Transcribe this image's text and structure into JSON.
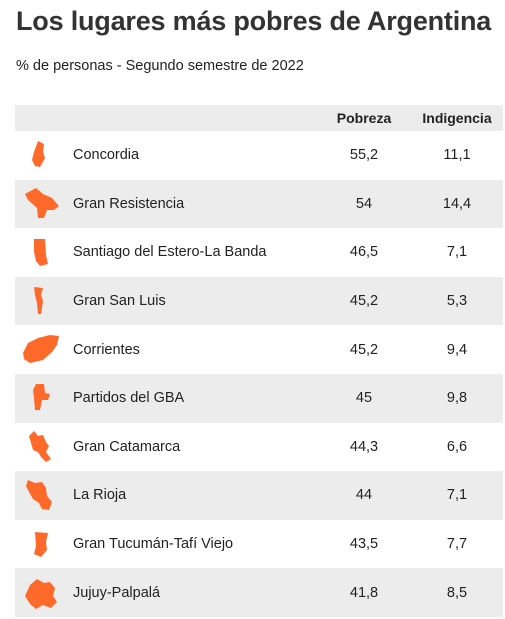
{
  "title": "Los lugares más pobres de Argentina",
  "subtitle": "% de personas - Segundo semestre de 2022",
  "colors": {
    "icon": "#ff6a2b",
    "row_alt": "#ececec"
  },
  "chart_data": {
    "type": "table",
    "columns": [
      "",
      "Pobreza",
      "Indigencia"
    ],
    "rows": [
      {
        "lugar": "Concordia",
        "pobreza": "55,2",
        "indigencia": "11,1",
        "icon": "concordia-map-icon"
      },
      {
        "lugar": "Gran Resistencia",
        "pobreza": "54",
        "indigencia": "14,4",
        "icon": "gran-resistencia-map-icon"
      },
      {
        "lugar": "Santiago del Estero-La Banda",
        "pobreza": "46,5",
        "indigencia": "7,1",
        "icon": "santiago-del-estero-map-icon"
      },
      {
        "lugar": "Gran San Luis",
        "pobreza": "45,2",
        "indigencia": "5,3",
        "icon": "gran-san-luis-map-icon"
      },
      {
        "lugar": "Corrientes",
        "pobreza": "45,2",
        "indigencia": "9,4",
        "icon": "corrientes-map-icon"
      },
      {
        "lugar": "Partidos del GBA",
        "pobreza": "45",
        "indigencia": "9,8",
        "icon": "partidos-del-gba-map-icon"
      },
      {
        "lugar": "Gran Catamarca",
        "pobreza": "44,3",
        "indigencia": "6,6",
        "icon": "gran-catamarca-map-icon"
      },
      {
        "lugar": "La Rioja",
        "pobreza": "44",
        "indigencia": "7,1",
        "icon": "la-rioja-map-icon"
      },
      {
        "lugar": "Gran Tucumán-Tafí Viejo",
        "pobreza": "43,5",
        "indigencia": "7,7",
        "icon": "gran-tucuman-map-icon"
      },
      {
        "lugar": "Jujuy-Palpalá",
        "pobreza": "41,8",
        "indigencia": "8,5",
        "icon": "jujuy-palpala-map-icon"
      }
    ]
  }
}
